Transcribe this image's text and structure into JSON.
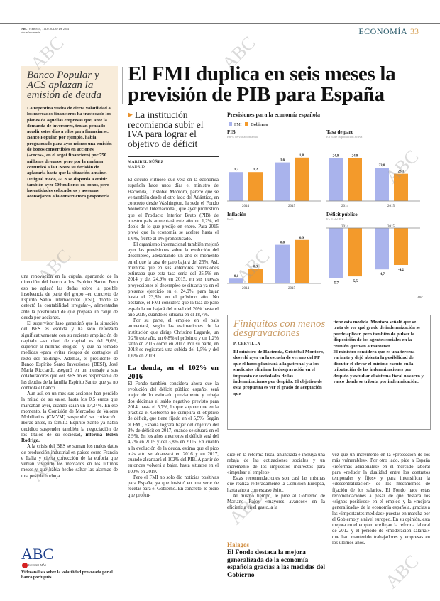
{
  "header": {
    "brand": "ABC",
    "date": "VIERNES, 11 DE JULIO DE 2014",
    "url": "abc.es/economia",
    "section": "ECONOMÍA",
    "page": "33"
  },
  "watermark": "ABC",
  "sidebar": {
    "title": "Banco Popular y ACS aplazan la emisión de deuda",
    "body": "La repentina vuelta de cierta volatilidad a los mercados financieros ha trastocado los planes de aquellas empresas que, ante la demanda de inversores, tenían pensado acudir estos días a ellos para financiarse. Banco Popular, por ejemplo, había programado para ayer mismo una emisión de bonos convertibles en acciones («cocos», en el argot financiero) por 750 millones de euros, pero por la mañana comunicó a la CNMV su decisión de aplazarla hasta que la situación amaine. De igual modo, ACS se disponía a emitir también ayer 500 millones en bonos, pero las entidades colocadores y asesoras aconsejaron a la constructora posponerla."
  },
  "left_column": {
    "paragraphs": [
      "una renovación en la cúpula, apartando de la dirección del banco a los Espírito Santo. Pero eso no aplacó las dudas sobre la posible insolvencia de parte del grupo –en concreto de Espírito Santo Internacional (ESI), donde se detectó la contabilidad irregular–, alimentadas ante la posibilidad de que prepara un canje de deuda por acciones.",
      "El supervisor luso garantizó que la situación del BES es «sólida y ha sido reforzada significativamente con su reciente ampliación de capital» –su nivel de capital es del 9,6%, superior al mínimo exigido– y que ha tomado medidas «para evitar riesgos de contagio» al resto del holding». Además, el presidente de Banco Espírito Santo Inversiones (BESI), José María Ricciardi, aseguró en un mensaje a sus colaboradores que «el BES no es responsable de las deudas de la familia Espírito Santo, que ya no controla el banco.",
      "Aun así, en un mes sus acciones han perdido la mitad de su valor, hasta los 0,5 euros que marcaban ayer, cuando caían un 17,24%. En ese momento, la Comisión de Mercados de Valores Mobiliarios (CMVM) suspendió su cotización. Horas antes, la familia Espírito Santo ya había decidido suspender también la negociación de los títulos de su sociedad,",
      "A la crisis del BES se suman los malos datos de producción industrial en países como Francia e Italia y cierta corrección de la euforia que venían viviendo los mercados en los últimos meses y que había hecho saltar las alarmas de una posible burbuja."
    ],
    "credit": "informa Belén Rodrigo.",
    "logo": "ABC",
    "kiosko": "KIOSKO·MÁS",
    "video_caption": "Videoanálisis sobre la volatilidad provocada por el banco portugués"
  },
  "headline": "El FMI duplica en seis meses la previsión de PIB para España",
  "subheadline": "La institución recomienda subir el IVA para lograr el objetivo de déficit",
  "byline": {
    "author": "MARIBEL NÚÑEZ",
    "place": "MADRID"
  },
  "main_column": {
    "paragraphs": [
      "El círculo virtuoso que veía en la economía española hace unos días el ministro de Hacienda, Cristóbal Montoro, parece que se ve también desde el otro lado del Atlántico, en concreto desde Washington, la sede el Fondo Monetario Internacional, que ayer pronosticó que el Producto Interior Bruto (PIB) de nuestro país aumentará este año un 1,2%, el doble de lo que predijo en enero. Para 2015 prevé que la economía se acelere hasta el 1,6%, frente al 1% pronosticado.",
      "El organismo internacional también mejoró ayer las previsiones sobre la evolución del desempleo, adelantando un año el momento en el que la tasa de paro bajará del 25%. Así, mientras que en sus anteriores previsiones estimaba que esta tasa sería del 25,5% en 2014 y del 24,9% en 2015, en sus nuevas proyecciones el desempleo se situaría ya en el presente ejercicio en el 24,9%, para bajar hasta el 23,8% en el próximo año. No obstante, el FMI considera que la tasa de paro española no bajará del nivel del 20% hasta el año 2019, cuando se situaría en el 18,7%.",
      "Por su parte, el empleo en el país aumentará, según las estimaciones de la institución que dirige Christine Lagarde, un 0,2% este año, un 0,8% el próximo y un 1,2% tanto en 2016 como en 2017. Por su parte, en 2018 se registrará una subida del 1,5% y del 1,6% en 2019."
    ],
    "section_title": "La deuda, en el 102% en 2016",
    "paragraphs2": [
      "El Fondo también considera ahora que la evolución del déficit público español será mejor de lo estimado previamente y rebaja dos décimas el saldo negativo previsto para 2014, hasta el 5,7%, lo que supone que en la práctica el Gobierno no cumplirá el objetivo de déficit, que tiene fijado en el 5,5%. Según el FMI, España logrará bajar del objetivo del 3% de déficit en 2017, cuando se situará en el 2,9%. En los años anteriores el déficit será del 4,7% en 2015 y del 3,8% en 2016. En cuanto a la evolución de la deuda, estima que el pico más alto se alcanzará en 2016 y en 2017, cuando alcanzará el 102% del PIB. A partir de entonces volverá a bajar, hasta situarse en el 100% en 2019.",
      "Pero el FMI no solo dio noticias positivas para España, ya que insistió en una serie de recetas para el Gobierno. En concreto, le pidió que profun-"
    ]
  },
  "chart_data": [
    {
      "type": "bar",
      "title": "PIB",
      "subtitle": "En % de variación anual",
      "categories": [
        "2014",
        "2015"
      ],
      "series": [
        {
          "name": "FMI",
          "values": [
            1.2,
            1.6
          ]
        },
        {
          "name": "Gobierno",
          "values": [
            1.2,
            1.8
          ]
        }
      ],
      "labels": [
        "1,2",
        "1,6",
        "1,2",
        "1,8"
      ],
      "ylim": [
        0,
        2
      ]
    },
    {
      "type": "bar",
      "title": "Tasa de paro",
      "subtitle": "En % de la población activa",
      "categories": [
        "2014",
        "2015"
      ],
      "series": [
        {
          "name": "FMI",
          "values": [
            24.9,
            23.8
          ]
        },
        {
          "name": "Gobierno",
          "values": [
            24.9,
            23.1
          ]
        }
      ],
      "labels": [
        "24,9",
        "23,8",
        "24,9",
        "23,1"
      ],
      "ylim": [
        20,
        25.5
      ]
    },
    {
      "type": "bar",
      "title": "Inflación",
      "subtitle": "En %",
      "categories": [
        "2014",
        "2015"
      ],
      "series": [
        {
          "name": "FMI",
          "values": [
            0.1,
            0.8
          ]
        },
        {
          "name": "Gobierno",
          "values": [
            0.3,
            0.9
          ]
        }
      ],
      "labels": [
        "0,1",
        "0,8",
        "0,3",
        "0,9"
      ],
      "ylim": [
        0,
        1
      ]
    },
    {
      "type": "bar",
      "title": "Déficit público",
      "subtitle": "En % del PIB",
      "categories": [
        "2014",
        "2015"
      ],
      "series": [
        {
          "name": "FMI",
          "values": [
            -5.7,
            -4.7
          ]
        },
        {
          "name": "Gobierno",
          "values": [
            -5.5,
            -4.2
          ]
        }
      ],
      "labels": [
        "-5,7",
        "-4,7",
        "-5,5",
        "-4,2"
      ],
      "ylim": [
        -6.3,
        0
      ]
    }
  ],
  "charts_header": {
    "title": "Previsiones para la economía española",
    "legend": [
      "FMI",
      "Gobierno"
    ],
    "colors": [
      "#a9b3ec",
      "#f39a2b"
    ],
    "source": "ABC"
  },
  "box": {
    "title": "Finiquitos con menos desgravaciones",
    "author": "P. CERVILLA",
    "text1": "El ministro de Hacienda, Cristóbal Montoro, desveló ayer en la escuela de verano del PP que el lunes planteará a la patronal y a los sindicatos eliminar la desgravación en el impuesto de sociedades de las indemnizaciones por despido. El objetivo de esta propuesta es ver el grado de aceptación que",
    "text2": "tiene esta medida. Montoro señaló que se trata de ver qué grado de indemnización se puede aplicar, pero también de pulsar la disposición de los agentes sociales en la reunión que van a mantener.",
    "text3": "El ministro considera que es una tercera variante y dejó abierta la posibilidad de discutir el elevar el mínimo exento en la tributación de las indemnizaciones por despido y estudiar el sistema fiscal navarro y vasco donde se tributa por indemnización."
  },
  "bottom": {
    "col1": [
      "dice en la reforma fiscal anunciada e incluya una rebaja de las cotizaciones sociales y un incremento de los impuestos indirectos para «impulsar el empleo».",
      "Estas recomendaciones son casi las mismas que realiza reiteradamente la Comisión Europea, hasta ahora con escaso éxito.",
      "Al mismo tiempo, le pide al Gobierno de Mariano Rajoy «mayores avances» en la eficiencia en el gasto, a la"
    ],
    "kicker": "Halagos",
    "pull_quote": "El Fondo destaca la mejora generalizada de la economía española gracias a las medidas del Gobierno",
    "col2": [
      "vez que un incremento en la «protección de los más vulnerables». Por otro lado, pide a España «reformas adicionales» en el mercado laboral para «reducir la dualidad entre los contratos temporales y fijos» y para intensificar la «descentralización» de los mecanismos de fijación de los salarios. El Fondo hace estas recomendaciones a pesar de que destaca los «signos positivos» en el empleo y la «mejora generalizada» de la economía española, gracias a las «importantes medidas» puestas en marcha por el Gobierno y a nivel europeo. En su opinión, esta mejora en el empleo «refleja» la reforma laboral de 2012 y el periodo de «moderación salarial» que han mantenido trabajadores y empresas en los últimos años."
    ]
  }
}
